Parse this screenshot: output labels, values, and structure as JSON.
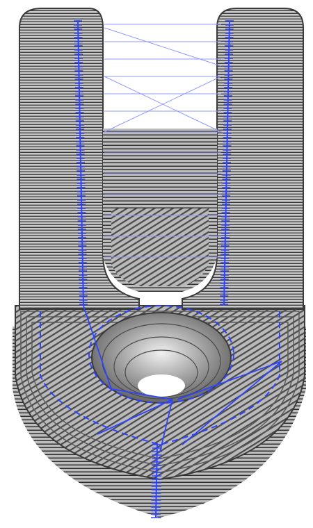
{
  "scene": {
    "description_kind": "3d-print-gcode-preview",
    "colors": {
      "background": "#ffffff",
      "shell_light": "#d2d2d2",
      "shell_mid": "#a8a8a8",
      "shell_dark": "#4a4a4a",
      "travel_moves": "#3b4fff",
      "travel_moves_light": "#8f98ff",
      "hole": "#ffffff"
    },
    "icons": [
      "layered-part-icon"
    ]
  }
}
